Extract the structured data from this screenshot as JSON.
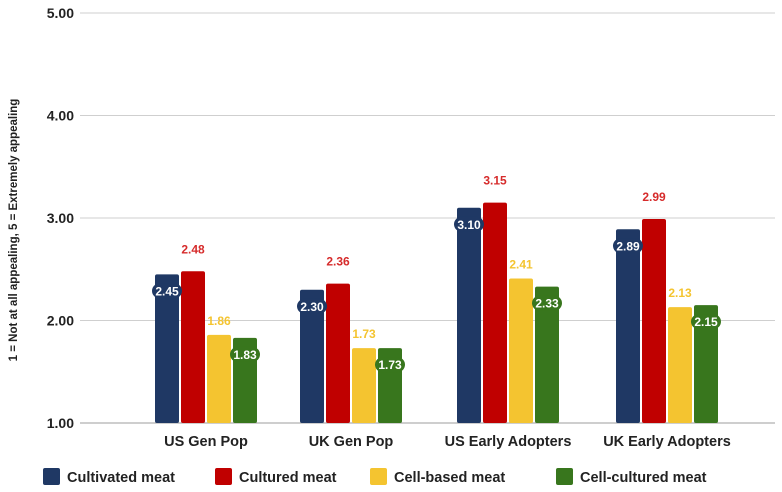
{
  "chart_data": {
    "type": "bar",
    "title": "",
    "xlabel": "",
    "ylabel": "1 = Not at all appealing, 5 = Extremely appealing",
    "ylim": [
      1,
      5
    ],
    "yticks": [
      "1.00",
      "2.00",
      "3.00",
      "4.00",
      "5.00"
    ],
    "grid": true,
    "legend_position": "bottom",
    "categories": [
      "US Gen Pop",
      "UK Gen Pop",
      "US Early Adopters",
      "UK Early Adopters"
    ],
    "series": [
      {
        "name": "Cultivated meat",
        "color": "#1f3864",
        "label_color": "#ffffff",
        "label_style": "inside-badge",
        "values": [
          2.45,
          2.3,
          3.1,
          2.89
        ],
        "labels": [
          "2.45",
          "2.30",
          "3.10",
          "2.89"
        ]
      },
      {
        "name": "Cultured meat",
        "color": "#c00000",
        "label_color": "#d62b2b",
        "label_style": "above",
        "values": [
          2.48,
          2.36,
          3.15,
          2.99
        ],
        "labels": [
          "2.48",
          "2.36",
          "3.15",
          "2.99"
        ]
      },
      {
        "name": "Cell-based meat",
        "color": "#f4c430",
        "label_color": "#f4c430",
        "label_style": "above",
        "values": [
          1.86,
          1.73,
          2.41,
          2.13
        ],
        "labels": [
          "1.86",
          "1.73",
          "2.41",
          "2.13"
        ]
      },
      {
        "name": "Cell-cultured meat",
        "color": "#38761d",
        "label_color": "#ffffff",
        "label_style": "inside-badge",
        "values": [
          1.83,
          1.73,
          2.33,
          2.15
        ],
        "labels": [
          "1.83",
          "1.73",
          "2.33",
          "2.15"
        ]
      }
    ]
  }
}
